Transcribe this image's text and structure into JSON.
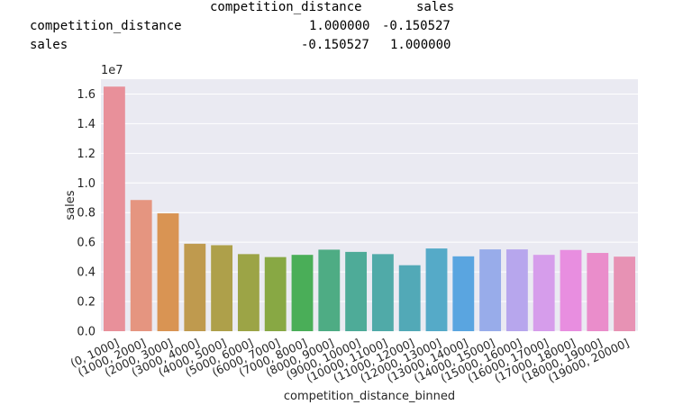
{
  "corr_table": {
    "columns": [
      "competition_distance",
      "sales"
    ],
    "rows": [
      {
        "label": "competition_distance",
        "values": [
          "1.000000",
          "-0.150527"
        ]
      },
      {
        "label": "sales",
        "values": [
          "-0.150527",
          "1.000000"
        ]
      }
    ]
  },
  "chart_data": {
    "type": "bar",
    "title": "",
    "xlabel": "competition_distance_binned",
    "ylabel": "sales",
    "scale_label": "1e7",
    "scale": 10000000,
    "ylim": [
      0,
      1.7
    ],
    "yticks": [
      "0.0",
      "0.2",
      "0.4",
      "0.6",
      "0.8",
      "1.0",
      "1.2",
      "1.4",
      "1.6"
    ],
    "grid": true,
    "categories": [
      "(0, 1000]",
      "(1000, 2000]",
      "(2000, 3000]",
      "(3000, 4000]",
      "(4000, 5000]",
      "(5000, 6000]",
      "(6000, 7000]",
      "(7000, 8000]",
      "(8000, 9000]",
      "(9000, 10000]",
      "(10000, 11000]",
      "(11000, 12000]",
      "(12000, 13000]",
      "(13000, 14000]",
      "(14000, 15000]",
      "(15000, 16000]",
      "(16000, 17000]",
      "(17000, 18000]",
      "(18000, 19000]",
      "(19000, 20000]"
    ],
    "values": [
      16500000,
      8850000,
      7950000,
      5900000,
      5800000,
      5200000,
      5000000,
      5150000,
      5500000,
      5350000,
      5200000,
      4450000,
      5580000,
      5050000,
      5520000,
      5520000,
      5150000,
      5480000,
      5280000,
      5030000
    ],
    "colors": [
      "#e8909a",
      "#e59580",
      "#d99453",
      "#bf9a4e",
      "#aea04a",
      "#9ca446",
      "#88a844",
      "#4aae58",
      "#4eac84",
      "#4eab98",
      "#50aaa8",
      "#52a9b7",
      "#55aac8",
      "#5aa5e0",
      "#98acea",
      "#b7a6ed",
      "#d69deb",
      "#e88ee0",
      "#ea8dcb",
      "#e792b4"
    ]
  }
}
